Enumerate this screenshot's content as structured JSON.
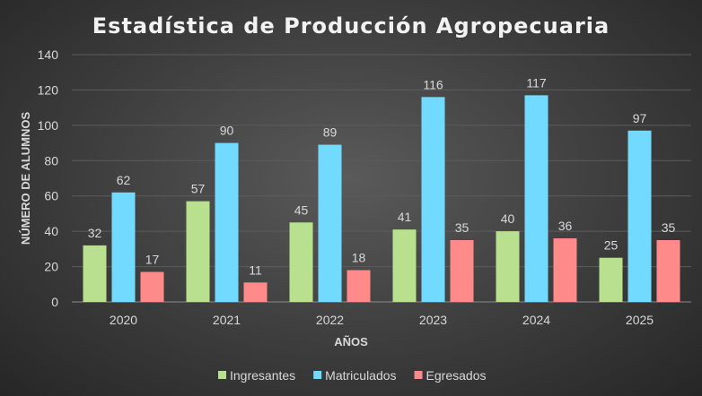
{
  "chart_data": {
    "type": "bar",
    "title": "Estadística de Producción Agropecuaria",
    "xlabel": "AÑOS",
    "ylabel": "NÚMERO DE ALUMNOS",
    "categories": [
      "2020",
      "2021",
      "2022",
      "2023",
      "2024",
      "2025"
    ],
    "series": [
      {
        "name": "Ingresantes",
        "color": "#b9e08e",
        "values": [
          32,
          57,
          45,
          41,
          40,
          25
        ]
      },
      {
        "name": "Matriculados",
        "color": "#72d9ff",
        "values": [
          62,
          90,
          89,
          116,
          117,
          97
        ]
      },
      {
        "name": "Egresados",
        "color": "#ff8a8a",
        "values": [
          17,
          11,
          18,
          35,
          36,
          35
        ]
      }
    ],
    "ylim": [
      0,
      140
    ],
    "yticks": [
      0,
      20,
      40,
      60,
      80,
      100,
      120,
      140
    ],
    "grid": true,
    "data_labels": true,
    "legend": "bottom"
  }
}
